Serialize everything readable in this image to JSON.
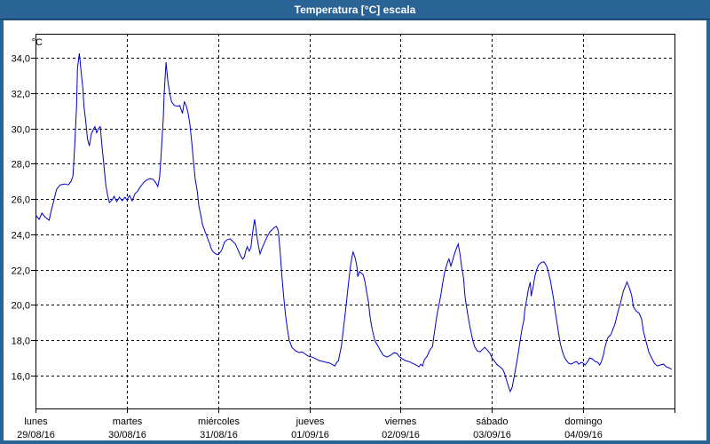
{
  "window": {
    "title": "Temperatura [°C] escala",
    "titlebar_color": "#2A6395",
    "titlebar_text_color": "#FFFFFF",
    "border_color": "#2A6395",
    "plot_background": "#FFFFFF"
  },
  "chart_data": {
    "type": "line",
    "title": "Temperatura [°C] escala",
    "xlabel": "",
    "ylabel": "°C",
    "line_color": "#0000C8",
    "grid": "dashed-black",
    "legend": "none",
    "ylim": [
      14.1,
      35.4
    ],
    "xlim_days": [
      0,
      7
    ],
    "y_ticks": [
      {
        "value": 34,
        "label": "34,0"
      },
      {
        "value": 32,
        "label": "32,0"
      },
      {
        "value": 30,
        "label": "30,0"
      },
      {
        "value": 28,
        "label": "28,0"
      },
      {
        "value": 26,
        "label": "26,0"
      },
      {
        "value": 24,
        "label": "24,0"
      },
      {
        "value": 22,
        "label": "22,0"
      },
      {
        "value": 20,
        "label": "20,0"
      },
      {
        "value": 18,
        "label": "18,0"
      },
      {
        "value": 16,
        "label": "16,0"
      }
    ],
    "x_days": [
      {
        "label": "lunes",
        "date": "29/08/16"
      },
      {
        "label": "martes",
        "date": "30/08/16"
      },
      {
        "label": "miércoles",
        "date": "31/08/16"
      },
      {
        "label": "jueves",
        "date": "01/09/16"
      },
      {
        "label": "viernes",
        "date": "02/09/16"
      },
      {
        "label": "sábado",
        "date": "03/09/16"
      },
      {
        "label": "domingo",
        "date": "04/09/16"
      }
    ],
    "series": [
      {
        "name": "Temperatura",
        "points": [
          [
            0.0,
            25.1
          ],
          [
            0.04,
            24.85
          ],
          [
            0.07,
            25.2
          ],
          [
            0.11,
            24.95
          ],
          [
            0.15,
            24.8
          ],
          [
            0.17,
            25.3
          ],
          [
            0.2,
            25.9
          ],
          [
            0.23,
            26.55
          ],
          [
            0.27,
            26.8
          ],
          [
            0.32,
            26.85
          ],
          [
            0.36,
            26.8
          ],
          [
            0.39,
            27.0
          ],
          [
            0.41,
            27.3
          ],
          [
            0.43,
            29.0
          ],
          [
            0.45,
            31.3
          ],
          [
            0.46,
            33.4
          ],
          [
            0.48,
            34.25
          ],
          [
            0.5,
            33.2
          ],
          [
            0.52,
            32.2
          ],
          [
            0.53,
            31.3
          ],
          [
            0.55,
            30.4
          ],
          [
            0.57,
            29.4
          ],
          [
            0.59,
            29.0
          ],
          [
            0.61,
            29.65
          ],
          [
            0.63,
            29.9
          ],
          [
            0.65,
            30.1
          ],
          [
            0.67,
            29.75
          ],
          [
            0.69,
            30.0
          ],
          [
            0.71,
            30.1
          ],
          [
            0.73,
            28.9
          ],
          [
            0.75,
            27.9
          ],
          [
            0.77,
            26.8
          ],
          [
            0.79,
            26.2
          ],
          [
            0.81,
            25.8
          ],
          [
            0.84,
            25.95
          ],
          [
            0.86,
            26.15
          ],
          [
            0.89,
            25.85
          ],
          [
            0.92,
            26.1
          ],
          [
            0.95,
            25.9
          ],
          [
            0.98,
            26.1
          ],
          [
            1.0,
            25.95
          ],
          [
            1.03,
            26.2
          ],
          [
            1.06,
            25.9
          ],
          [
            1.09,
            26.3
          ],
          [
            1.12,
            26.45
          ],
          [
            1.15,
            26.7
          ],
          [
            1.18,
            26.9
          ],
          [
            1.21,
            27.05
          ],
          [
            1.25,
            27.15
          ],
          [
            1.29,
            27.1
          ],
          [
            1.32,
            26.9
          ],
          [
            1.34,
            26.7
          ],
          [
            1.36,
            27.25
          ],
          [
            1.38,
            28.8
          ],
          [
            1.4,
            30.6
          ],
          [
            1.41,
            32.0
          ],
          [
            1.43,
            33.75
          ],
          [
            1.45,
            32.7
          ],
          [
            1.47,
            32.0
          ],
          [
            1.49,
            31.5
          ],
          [
            1.52,
            31.3
          ],
          [
            1.56,
            31.25
          ],
          [
            1.58,
            31.3
          ],
          [
            1.61,
            30.85
          ],
          [
            1.63,
            31.5
          ],
          [
            1.65,
            31.3
          ],
          [
            1.67,
            30.9
          ],
          [
            1.69,
            30.3
          ],
          [
            1.71,
            29.3
          ],
          [
            1.73,
            28.2
          ],
          [
            1.75,
            27.1
          ],
          [
            1.77,
            26.5
          ],
          [
            1.79,
            25.6
          ],
          [
            1.81,
            25.1
          ],
          [
            1.83,
            24.55
          ],
          [
            1.85,
            24.25
          ],
          [
            1.87,
            24.0
          ],
          [
            1.89,
            23.7
          ],
          [
            1.91,
            23.45
          ],
          [
            1.92,
            23.25
          ],
          [
            1.94,
            23.05
          ],
          [
            1.96,
            22.95
          ],
          [
            1.99,
            22.85
          ],
          [
            2.01,
            22.9
          ],
          [
            2.04,
            23.1
          ],
          [
            2.07,
            23.55
          ],
          [
            2.1,
            23.7
          ],
          [
            2.13,
            23.75
          ],
          [
            2.16,
            23.6
          ],
          [
            2.19,
            23.45
          ],
          [
            2.22,
            23.1
          ],
          [
            2.25,
            22.75
          ],
          [
            2.27,
            22.6
          ],
          [
            2.29,
            22.75
          ],
          [
            2.3,
            23.0
          ],
          [
            2.32,
            23.3
          ],
          [
            2.34,
            23.05
          ],
          [
            2.36,
            23.25
          ],
          [
            2.38,
            24.15
          ],
          [
            2.4,
            24.85
          ],
          [
            2.42,
            24.1
          ],
          [
            2.44,
            23.4
          ],
          [
            2.46,
            22.9
          ],
          [
            2.48,
            23.2
          ],
          [
            2.51,
            23.55
          ],
          [
            2.54,
            23.9
          ],
          [
            2.57,
            24.15
          ],
          [
            2.6,
            24.3
          ],
          [
            2.62,
            24.4
          ],
          [
            2.64,
            24.45
          ],
          [
            2.66,
            24.2
          ],
          [
            2.68,
            23.0
          ],
          [
            2.7,
            21.6
          ],
          [
            2.72,
            20.4
          ],
          [
            2.74,
            19.4
          ],
          [
            2.76,
            18.6
          ],
          [
            2.78,
            18.0
          ],
          [
            2.81,
            17.6
          ],
          [
            2.85,
            17.4
          ],
          [
            2.89,
            17.3
          ],
          [
            2.92,
            17.35
          ],
          [
            2.96,
            17.2
          ],
          [
            2.99,
            17.1
          ],
          [
            3.03,
            17.05
          ],
          [
            3.07,
            16.95
          ],
          [
            3.11,
            16.85
          ],
          [
            3.15,
            16.8
          ],
          [
            3.19,
            16.75
          ],
          [
            3.23,
            16.7
          ],
          [
            3.26,
            16.6
          ],
          [
            3.28,
            16.55
          ],
          [
            3.3,
            16.75
          ],
          [
            3.32,
            16.85
          ],
          [
            3.33,
            17.15
          ],
          [
            3.35,
            17.65
          ],
          [
            3.37,
            18.5
          ],
          [
            3.39,
            19.4
          ],
          [
            3.41,
            20.3
          ],
          [
            3.43,
            21.3
          ],
          [
            3.45,
            22.2
          ],
          [
            3.47,
            22.8
          ],
          [
            3.48,
            23.0
          ],
          [
            3.5,
            22.7
          ],
          [
            3.52,
            22.2
          ],
          [
            3.53,
            21.6
          ],
          [
            3.55,
            21.9
          ],
          [
            3.57,
            21.8
          ],
          [
            3.59,
            21.7
          ],
          [
            3.61,
            21.3
          ],
          [
            3.63,
            20.65
          ],
          [
            3.65,
            20.1
          ],
          [
            3.66,
            19.5
          ],
          [
            3.68,
            18.85
          ],
          [
            3.7,
            18.35
          ],
          [
            3.72,
            17.95
          ],
          [
            3.75,
            17.7
          ],
          [
            3.78,
            17.4
          ],
          [
            3.81,
            17.15
          ],
          [
            3.85,
            17.05
          ],
          [
            3.89,
            17.15
          ],
          [
            3.93,
            17.3
          ],
          [
            3.96,
            17.25
          ],
          [
            3.99,
            17.05
          ],
          [
            4.02,
            16.95
          ],
          [
            4.05,
            16.85
          ],
          [
            4.09,
            16.8
          ],
          [
            4.13,
            16.7
          ],
          [
            4.17,
            16.6
          ],
          [
            4.2,
            16.5
          ],
          [
            4.22,
            16.65
          ],
          [
            4.24,
            16.55
          ],
          [
            4.26,
            16.9
          ],
          [
            4.29,
            17.1
          ],
          [
            4.32,
            17.45
          ],
          [
            4.35,
            17.65
          ],
          [
            4.36,
            18.1
          ],
          [
            4.38,
            18.8
          ],
          [
            4.4,
            19.5
          ],
          [
            4.42,
            20.0
          ],
          [
            4.44,
            20.55
          ],
          [
            4.46,
            21.2
          ],
          [
            4.48,
            21.8
          ],
          [
            4.5,
            22.2
          ],
          [
            4.52,
            22.5
          ],
          [
            4.53,
            22.6
          ],
          [
            4.55,
            22.2
          ],
          [
            4.57,
            22.55
          ],
          [
            4.59,
            22.9
          ],
          [
            4.61,
            23.2
          ],
          [
            4.63,
            23.45
          ],
          [
            4.65,
            22.9
          ],
          [
            4.67,
            22.1
          ],
          [
            4.69,
            21.5
          ],
          [
            4.7,
            20.8
          ],
          [
            4.71,
            20.25
          ],
          [
            4.73,
            19.65
          ],
          [
            4.75,
            19.0
          ],
          [
            4.77,
            18.5
          ],
          [
            4.79,
            18.0
          ],
          [
            4.81,
            17.65
          ],
          [
            4.84,
            17.4
          ],
          [
            4.87,
            17.35
          ],
          [
            4.9,
            17.5
          ],
          [
            4.92,
            17.6
          ],
          [
            4.95,
            17.45
          ],
          [
            4.98,
            17.25
          ],
          [
            5.0,
            17.0
          ],
          [
            5.03,
            16.8
          ],
          [
            5.06,
            16.6
          ],
          [
            5.09,
            16.5
          ],
          [
            5.12,
            16.35
          ],
          [
            5.14,
            16.1
          ],
          [
            5.16,
            15.75
          ],
          [
            5.18,
            15.4
          ],
          [
            5.2,
            15.1
          ],
          [
            5.22,
            15.3
          ],
          [
            5.24,
            15.85
          ],
          [
            5.26,
            16.4
          ],
          [
            5.28,
            17.0
          ],
          [
            5.3,
            17.65
          ],
          [
            5.33,
            18.65
          ],
          [
            5.35,
            19.15
          ],
          [
            5.36,
            19.7
          ],
          [
            5.38,
            20.3
          ],
          [
            5.4,
            20.9
          ],
          [
            5.42,
            21.3
          ],
          [
            5.43,
            20.5
          ],
          [
            5.45,
            21.0
          ],
          [
            5.47,
            21.6
          ],
          [
            5.49,
            22.0
          ],
          [
            5.51,
            22.25
          ],
          [
            5.54,
            22.4
          ],
          [
            5.57,
            22.45
          ],
          [
            5.6,
            22.2
          ],
          [
            5.62,
            21.8
          ],
          [
            5.64,
            21.4
          ],
          [
            5.66,
            20.8
          ],
          [
            5.68,
            20.2
          ],
          [
            5.69,
            19.7
          ],
          [
            5.71,
            19.1
          ],
          [
            5.73,
            18.4
          ],
          [
            5.75,
            17.8
          ],
          [
            5.77,
            17.4
          ],
          [
            5.79,
            17.1
          ],
          [
            5.81,
            16.9
          ],
          [
            5.84,
            16.7
          ],
          [
            5.87,
            16.65
          ],
          [
            5.9,
            16.75
          ],
          [
            5.93,
            16.8
          ],
          [
            5.95,
            16.65
          ],
          [
            5.98,
            16.75
          ],
          [
            6.0,
            16.7
          ],
          [
            6.02,
            16.6
          ],
          [
            6.05,
            16.8
          ],
          [
            6.07,
            17.0
          ],
          [
            6.1,
            16.95
          ],
          [
            6.13,
            16.8
          ],
          [
            6.16,
            16.75
          ],
          [
            6.18,
            16.6
          ],
          [
            6.2,
            16.8
          ],
          [
            6.22,
            17.15
          ],
          [
            6.24,
            17.65
          ],
          [
            6.27,
            18.15
          ],
          [
            6.3,
            18.3
          ],
          [
            6.32,
            18.55
          ],
          [
            6.35,
            18.95
          ],
          [
            6.38,
            19.6
          ],
          [
            6.41,
            20.15
          ],
          [
            6.44,
            20.8
          ],
          [
            6.46,
            21.05
          ],
          [
            6.48,
            21.3
          ],
          [
            6.51,
            20.9
          ],
          [
            6.53,
            20.55
          ],
          [
            6.55,
            19.9
          ],
          [
            6.58,
            19.65
          ],
          [
            6.61,
            19.55
          ],
          [
            6.64,
            19.2
          ],
          [
            6.66,
            18.5
          ],
          [
            6.69,
            17.9
          ],
          [
            6.72,
            17.3
          ],
          [
            6.75,
            17.0
          ],
          [
            6.78,
            16.7
          ],
          [
            6.81,
            16.55
          ],
          [
            6.84,
            16.6
          ],
          [
            6.88,
            16.65
          ],
          [
            6.91,
            16.5
          ],
          [
            6.94,
            16.45
          ],
          [
            6.97,
            16.35
          ]
        ]
      }
    ]
  }
}
